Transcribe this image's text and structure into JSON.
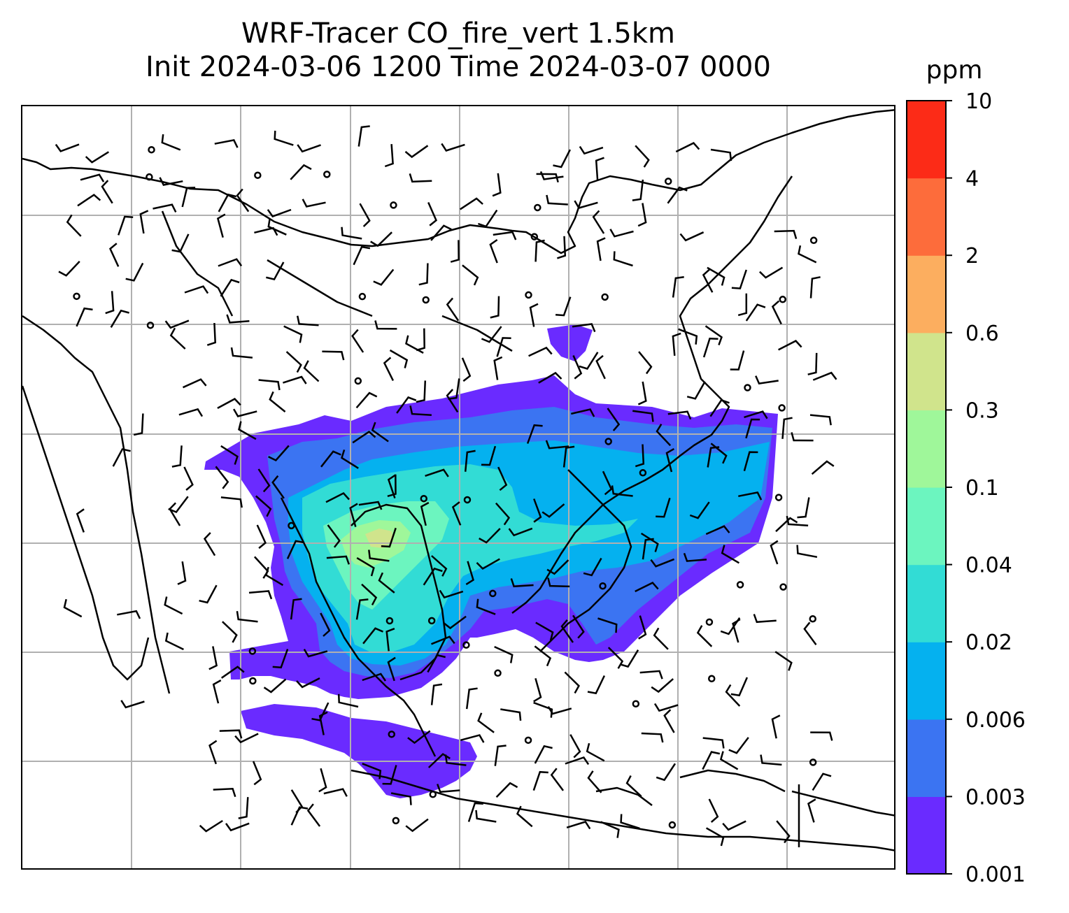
{
  "title": {
    "line1": "WRF-Tracer CO_fire_vert 1.5km",
    "line2": "Init 2024-03-06 1200 Time 2024-03-07 0000"
  },
  "colorbar": {
    "unit": "ppm",
    "levels": [
      "0.001",
      "0.003",
      "0.006",
      "0.02",
      "0.04",
      "0.1",
      "0.3",
      "0.6",
      "2",
      "4",
      "10"
    ],
    "colors": [
      "#6a2bff",
      "#3b74f2",
      "#05b1ef",
      "#32dcd5",
      "#6cf5bf",
      "#9ff79a",
      "#d0e48c",
      "#fcae5f",
      "#fd6c3b",
      "#fc2b17"
    ]
  },
  "chart_data": {
    "type": "heatmap",
    "variable": "CO_fire_vert",
    "gridlines": true,
    "overlays": [
      "coastlines",
      "wind-barbs"
    ],
    "colorbar_placement": "right"
  }
}
